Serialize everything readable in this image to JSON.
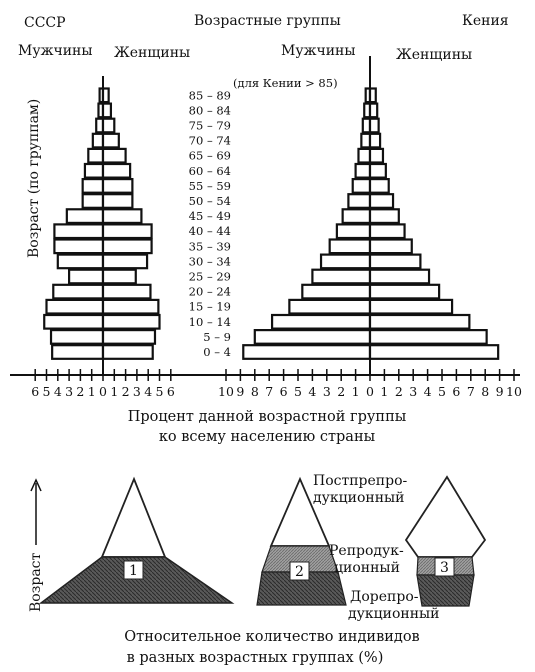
{
  "headers": {
    "ussr": "СССР",
    "age_groups": "Возрастные группы",
    "kenya": "Кения",
    "men_left": "Мужчины",
    "women_left": "Женщины",
    "men_right": "Мужчины",
    "women_right": "Женщины",
    "y_axis": "Возраст (по группам)",
    "x_caption_1": "Процент данной возрастной группы",
    "x_caption_2": "ко всему населению страны"
  },
  "chart_data": [
    {
      "type": "bar",
      "name": "СССР",
      "categories": [
        "0 – 4",
        "5 – 9",
        "10 – 14",
        "15 – 19",
        "20 – 24",
        "25 – 29",
        "30 – 34",
        "35 – 39",
        "40 – 44",
        "45 – 49",
        "50 – 54",
        "55 – 59",
        "60 – 64",
        "65 – 69",
        "70 – 74",
        "75 – 79",
        "80 – 84",
        "85 – 89"
      ],
      "series": [
        {
          "name": "Мужчины",
          "values": [
            4.5,
            4.6,
            5.2,
            5.0,
            4.4,
            3.0,
            4.0,
            4.3,
            4.3,
            3.2,
            1.8,
            1.8,
            1.6,
            1.3,
            0.9,
            0.6,
            0.4,
            0.3
          ]
        },
        {
          "name": "Женщины",
          "values": [
            4.4,
            4.6,
            5.0,
            4.9,
            4.2,
            2.9,
            3.9,
            4.3,
            4.3,
            3.4,
            2.6,
            2.6,
            2.4,
            2.0,
            1.4,
            1.0,
            0.7,
            0.5
          ]
        }
      ],
      "xlim": [
        -6,
        6
      ],
      "xticks": [
        "6",
        "5",
        "4",
        "3",
        "2",
        "1",
        "0",
        "1",
        "2",
        "3",
        "4",
        "5",
        "6"
      ]
    },
    {
      "type": "bar",
      "name": "Кения",
      "categories": [
        "0 – 4",
        "5 – 9",
        "10 – 14",
        "15 – 19",
        "20 – 24",
        "25 – 29",
        "30 – 34",
        "35 – 39",
        "40 – 44",
        "45 – 49",
        "50 – 54",
        "55 – 59",
        "60 – 64",
        "65 – 69",
        "70 – 74",
        "75 – 79",
        "80 – 84",
        "85 – 89"
      ],
      "series": [
        {
          "name": "Мужчины",
          "values": [
            8.8,
            8.0,
            6.8,
            5.6,
            4.7,
            4.0,
            3.4,
            2.8,
            2.3,
            1.9,
            1.5,
            1.2,
            1.0,
            0.8,
            0.6,
            0.5,
            0.4,
            0.3
          ]
        },
        {
          "name": "Женщины",
          "values": [
            8.9,
            8.1,
            6.9,
            5.7,
            4.8,
            4.1,
            3.5,
            2.9,
            2.4,
            2.0,
            1.6,
            1.3,
            1.1,
            0.9,
            0.7,
            0.6,
            0.5,
            0.4
          ]
        }
      ],
      "xlim": [
        -10,
        10
      ],
      "xticks": [
        "10",
        "9",
        "8",
        "7",
        "6",
        "5",
        "4",
        "3",
        "2",
        "1",
        "0",
        "1",
        "2",
        "3",
        "4",
        "5",
        "6",
        "7",
        "8",
        "9",
        "10"
      ]
    }
  ],
  "age_labels": [
    "0 – 4",
    "5 – 9",
    "10 – 14",
    "15 – 19",
    "20 – 24",
    "25 – 29",
    "30 – 34",
    "35 – 39",
    "40 – 44",
    "45 – 49",
    "50 – 54",
    "55 – 59",
    "60 – 64",
    "65 – 69",
    "70 – 74",
    "75 – 79",
    "80 – 84",
    "85 – 89"
  ],
  "kenya_note": "(для Кении > 85)",
  "bottom": {
    "axis_label": "Возраст",
    "label_post_1": "Постпрепро-",
    "label_post_2": "дукционный",
    "label_rep_1": "Репродук-",
    "label_rep_2": "ционный",
    "label_pre_1": "Дорепро-",
    "label_pre_2": "дукционный",
    "num_1": "1",
    "num_2": "2",
    "num_3": "3",
    "caption_1": "Относительное количество индивидов",
    "caption_2": "в разных возрастных группах (%)",
    "colors": {
      "pre": "#4a4a4a",
      "rep": "#8f8f8f",
      "post": "#ffffff"
    }
  }
}
